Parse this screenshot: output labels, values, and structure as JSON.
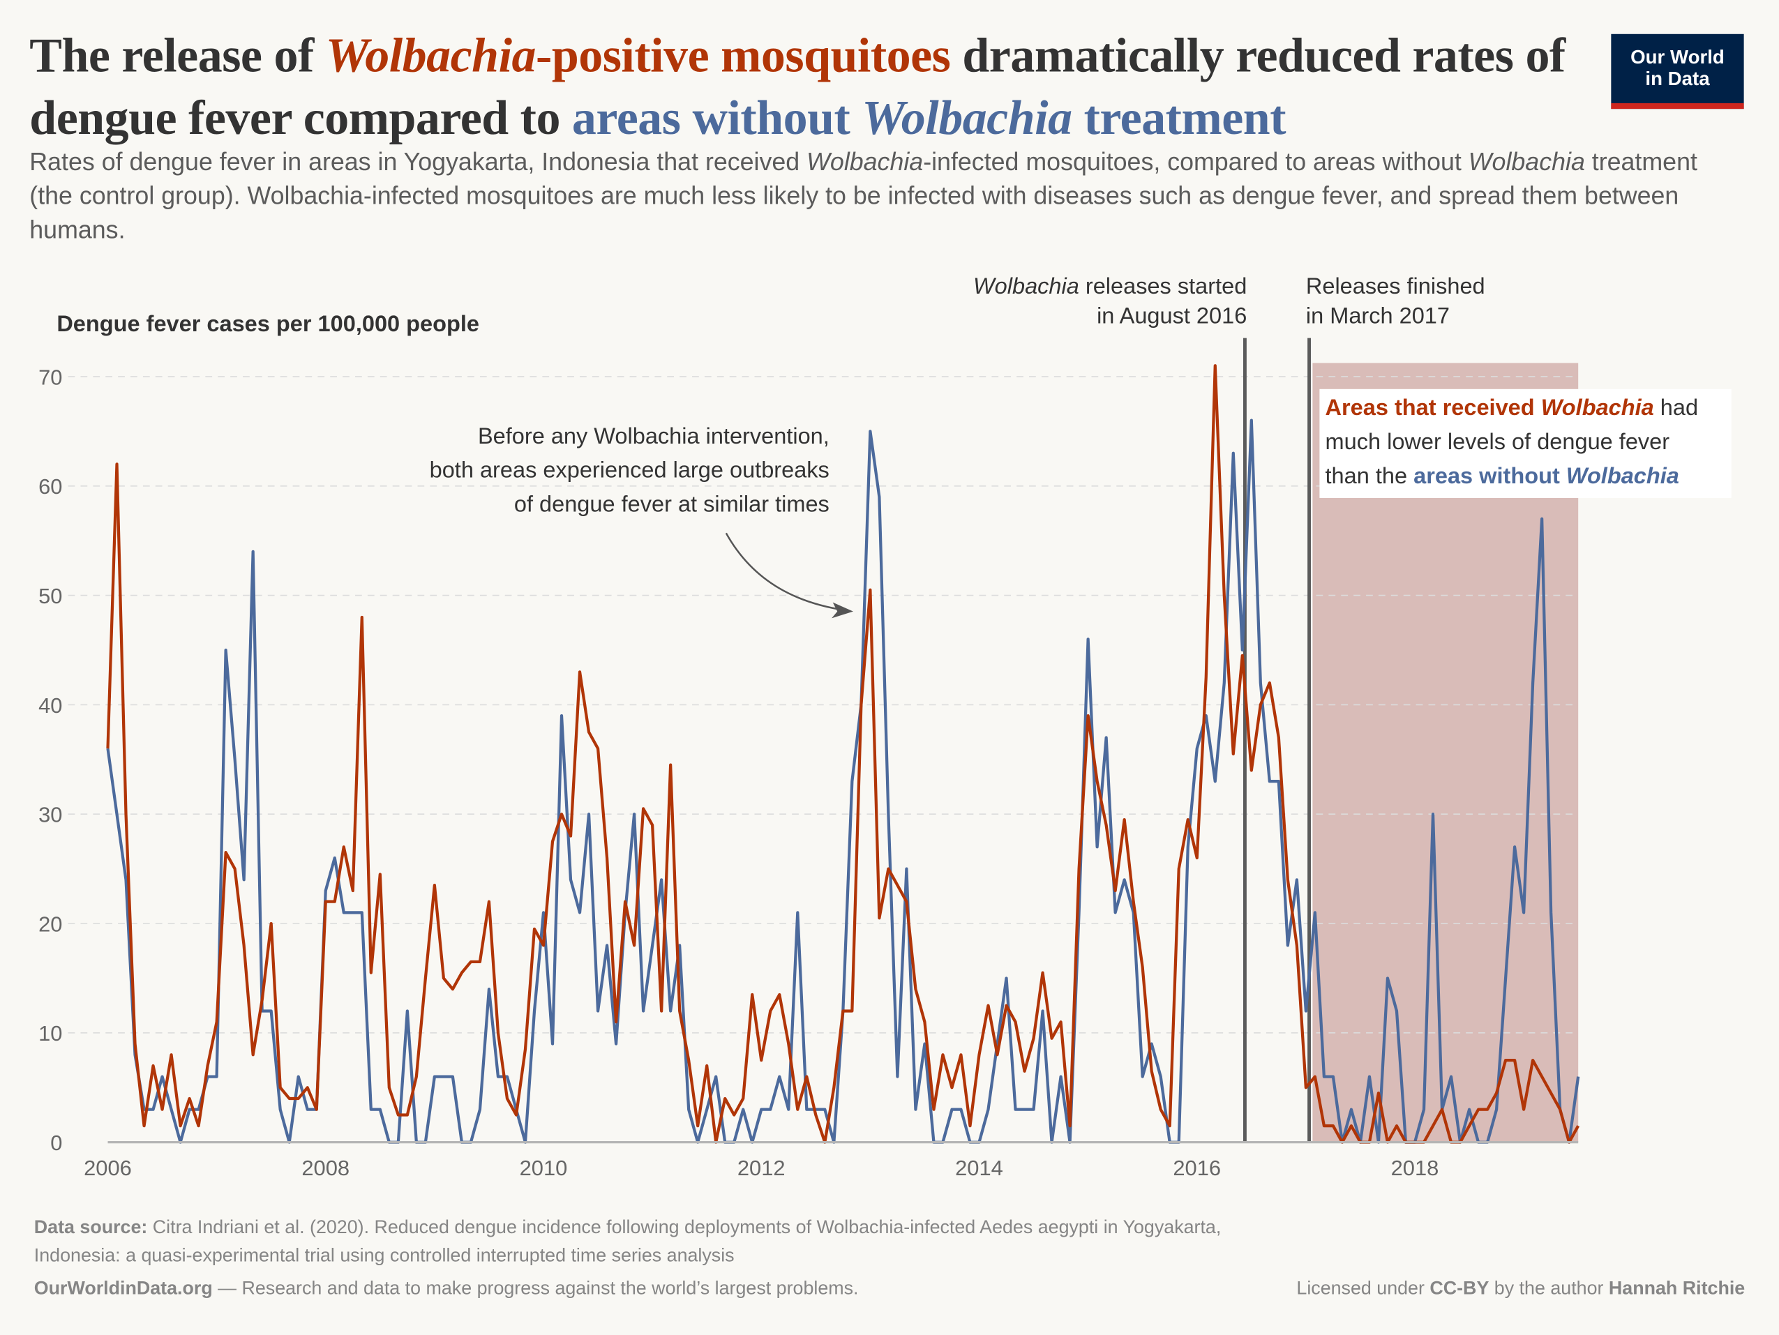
{
  "title": {
    "part1": "The release of ",
    "part2_italic": "Wolbachia",
    "part3": "-positive mosquitoes",
    "part4": " dramatically reduced rates of dengue fever compared to ",
    "part5": "areas without ",
    "part6_italic": "Wolbachia",
    "part7": " treatment"
  },
  "subtitle": {
    "s1": "Rates of dengue fever in areas in Yogyakarta, Indonesia that received ",
    "s2_italic": "Wolbachia",
    "s3": "-infected mosquitoes, compared to areas without ",
    "s4_italic": "Wolbachia",
    "s5": " treatment (the control group). Wolbachia-infected mosquitoes are much less likely to be infected with diseases such as dengue fever, and spread them between humans."
  },
  "logo": {
    "line1": "Our World",
    "line2": "in Data"
  },
  "colors": {
    "treatment": "#b13507",
    "control": "#4c6a9c",
    "shade": "#d9bcb8",
    "event_line": "#5b5b5b"
  },
  "annotations": {
    "before": [
      "Before any Wolbachia intervention,",
      "both areas experienced large outbreaks",
      "of dengue fever at similar times"
    ],
    "release_start": {
      "italic": "Wolbachia",
      "rest": " releases started",
      "line2": "in August 2016"
    },
    "release_end": {
      "line1": "Releases finished",
      "line2": "in March 2017"
    },
    "box": {
      "b1": "Areas that received ",
      "b2": "Wolbachia",
      "b3": " had",
      "b4": "much lower levels of dengue fever",
      "b5": "than the ",
      "b6": "areas without ",
      "b7": "Wolbachia"
    }
  },
  "footer": {
    "source_label": "Data source:",
    "source_text": " Citra Indriani et al. (2020). Reduced dengue incidence following deployments of Wolbachia-infected Aedes aegypti in Yogyakarta,",
    "source_text2": "Indonesia: a quasi-experimental trial using controlled interrupted time series analysis",
    "site": "OurWorldinData.org",
    "tagline": " — Research and data to make progress against the world’s largest problems.",
    "license_pre": "Licensed under ",
    "license": "CC-BY",
    "license_mid": " by the author ",
    "author": "Hannah Ritchie"
  },
  "chart_data": {
    "type": "line",
    "ylabel": "Dengue fever cases per 100,000 people",
    "ylim": [
      0,
      70
    ],
    "yticks": [
      0,
      10,
      20,
      30,
      40,
      50,
      60,
      70
    ],
    "xticks": [
      "2006",
      "2008",
      "2010",
      "2012",
      "2014",
      "2016",
      "2018"
    ],
    "x_start": "2006-01",
    "x_frequency": "monthly",
    "grid": "horizontal dashed",
    "series": [
      {
        "key": "control",
        "values": [
          36,
          30,
          24,
          8,
          3,
          3,
          6,
          3,
          0,
          3,
          3,
          6,
          6,
          45,
          35,
          24,
          54,
          12,
          12,
          3,
          0,
          6,
          3,
          3,
          23,
          26,
          21,
          21,
          21,
          3,
          3,
          0,
          0,
          12,
          0,
          0,
          6,
          6,
          6,
          0,
          0,
          3,
          14,
          6,
          6,
          3,
          0,
          12,
          21,
          9,
          39,
          24,
          21,
          30,
          12,
          18,
          9,
          21,
          30,
          12,
          18,
          24,
          12,
          18,
          3,
          0,
          3,
          6,
          0,
          0,
          3,
          0,
          3,
          3,
          6,
          3,
          21,
          3,
          3,
          3,
          0,
          12,
          33,
          40,
          65,
          59,
          30,
          6,
          25,
          3,
          9,
          0,
          0,
          3,
          3,
          0,
          0,
          3,
          9,
          15,
          3,
          3,
          3,
          12,
          0,
          6,
          0,
          21,
          46,
          27,
          37,
          21,
          24,
          21,
          6,
          9,
          6,
          0,
          0,
          27,
          36,
          39,
          33,
          42,
          63,
          45,
          66,
          42,
          33,
          33,
          18,
          24,
          12,
          21,
          6,
          6,
          0,
          3,
          0,
          6,
          0,
          15,
          12,
          0,
          0,
          3,
          30,
          3,
          6,
          0,
          3,
          0,
          0,
          3,
          15,
          27,
          21,
          42,
          57,
          21,
          3,
          0,
          6
        ]
      },
      {
        "key": "treatment",
        "values": [
          36,
          62,
          30,
          9,
          1.5,
          7,
          3,
          8,
          1.5,
          4,
          1.5,
          7,
          11,
          26.5,
          25,
          18,
          8,
          13,
          20,
          5,
          4,
          4,
          5,
          3,
          22,
          22,
          27,
          23,
          48,
          15.5,
          24.5,
          5,
          2.5,
          2.5,
          6,
          15,
          23.5,
          15,
          14,
          15.5,
          16.5,
          16.5,
          22,
          10,
          4,
          2.5,
          8.5,
          19.5,
          18,
          27.5,
          30,
          28,
          43,
          37.5,
          36,
          26,
          11,
          22,
          18,
          30.5,
          29,
          12,
          34.5,
          12,
          7.5,
          1.5,
          7,
          0,
          4,
          2.5,
          4,
          13.5,
          7.5,
          12,
          13.5,
          9,
          3,
          6,
          2.5,
          0,
          5,
          12,
          12,
          40,
          50.5,
          20.5,
          25,
          23.5,
          22,
          14,
          11,
          3,
          8,
          5,
          8,
          1.5,
          8,
          12.5,
          8,
          12.5,
          11,
          6.5,
          9.5,
          15.5,
          9.5,
          11,
          1.5,
          25,
          39,
          33,
          29,
          23,
          29.5,
          22,
          16,
          6.5,
          3,
          1.5,
          25,
          29.5,
          26,
          42.5,
          71,
          50,
          35.5,
          44.5,
          34,
          40,
          42,
          37,
          24,
          18,
          5,
          6,
          1.5,
          1.5,
          0,
          1.5,
          0,
          0,
          4.5,
          0,
          1.5,
          0,
          0,
          0,
          1.5,
          3,
          0,
          0,
          1.5,
          3,
          3,
          4.5,
          7.5,
          7.5,
          3,
          7.5,
          6,
          4.5,
          3,
          0,
          1.5
        ]
      }
    ],
    "events": [
      {
        "label": "Wolbachia releases started in August 2016"
      },
      {
        "label": "Releases finished in March 2017"
      }
    ]
  }
}
